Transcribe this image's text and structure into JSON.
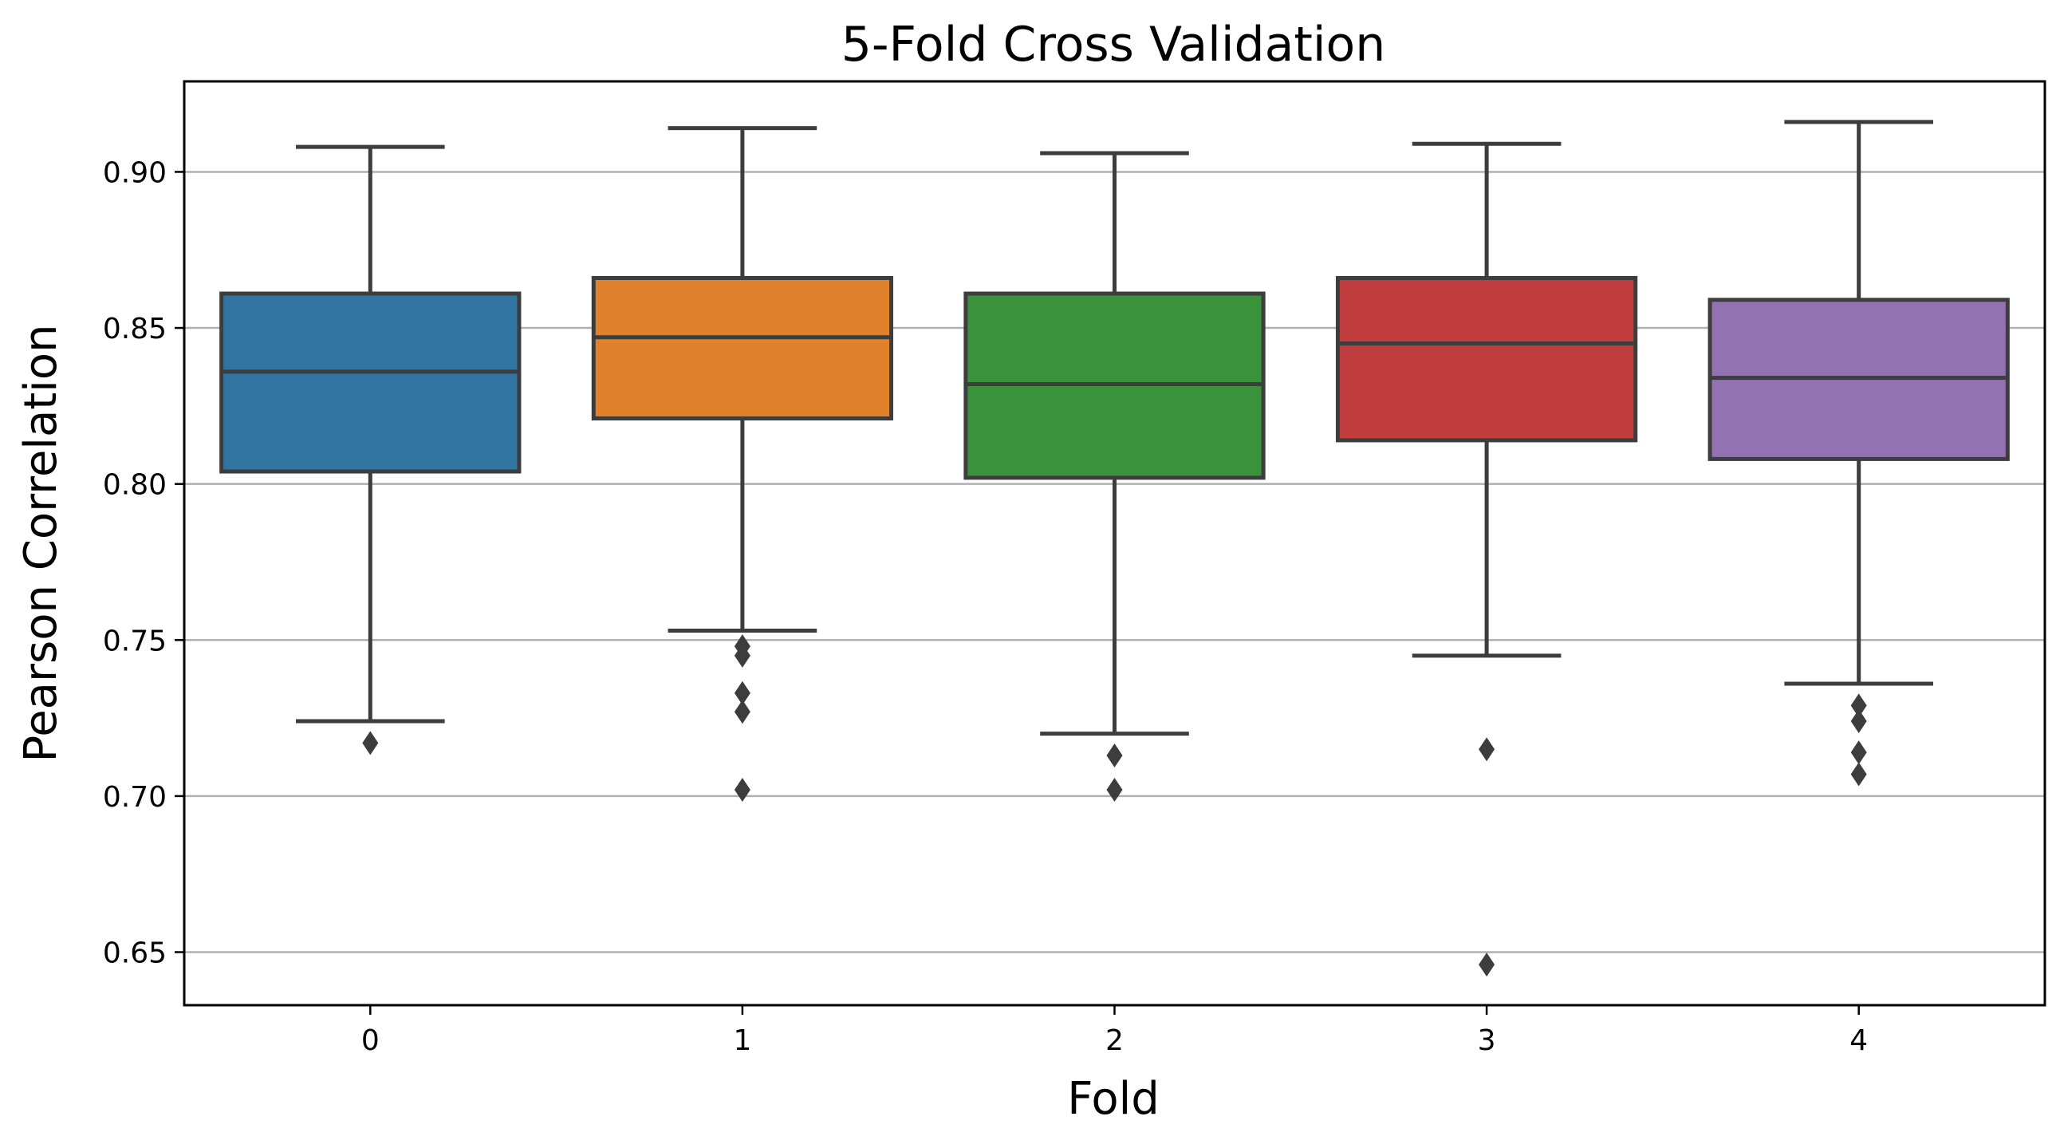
{
  "chart_data": {
    "type": "box",
    "title": "5-Fold Cross Validation",
    "xlabel": "Fold",
    "ylabel": "Pearson Correlation",
    "categories": [
      "0",
      "1",
      "2",
      "3",
      "4"
    ],
    "ylim": [
      0.633,
      0.929
    ],
    "yticks": [
      "0.65",
      "0.70",
      "0.75",
      "0.80",
      "0.85",
      "0.90"
    ],
    "grid": "horizontal",
    "colors": [
      "#3274a1",
      "#e1812c",
      "#3a923a",
      "#c03d3e",
      "#9372b2"
    ],
    "edge_color": "#3d3d3d",
    "boxes": [
      {
        "fold": "0",
        "whisker_low": 0.724,
        "q1": 0.804,
        "median": 0.836,
        "q3": 0.861,
        "whisker_high": 0.908,
        "outliers": [
          0.717
        ]
      },
      {
        "fold": "1",
        "whisker_low": 0.753,
        "q1": 0.821,
        "median": 0.847,
        "q3": 0.866,
        "whisker_high": 0.914,
        "outliers": [
          0.748,
          0.745,
          0.733,
          0.727,
          0.702
        ]
      },
      {
        "fold": "2",
        "whisker_low": 0.72,
        "q1": 0.802,
        "median": 0.832,
        "q3": 0.861,
        "whisker_high": 0.906,
        "outliers": [
          0.713,
          0.702
        ]
      },
      {
        "fold": "3",
        "whisker_low": 0.745,
        "q1": 0.814,
        "median": 0.845,
        "q3": 0.866,
        "whisker_high": 0.909,
        "outliers": [
          0.715,
          0.646
        ]
      },
      {
        "fold": "4",
        "whisker_low": 0.736,
        "q1": 0.808,
        "median": 0.834,
        "q3": 0.859,
        "whisker_high": 0.916,
        "outliers": [
          0.729,
          0.724,
          0.714,
          0.707
        ]
      }
    ]
  }
}
